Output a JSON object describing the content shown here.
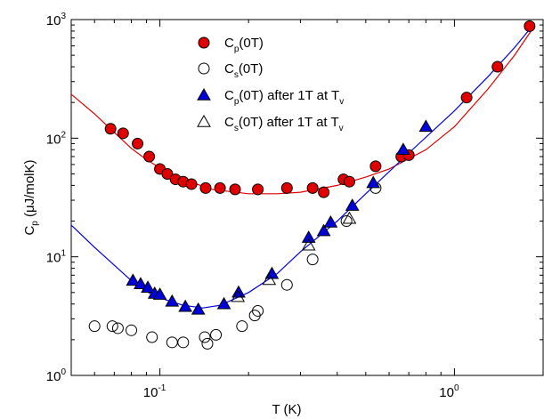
{
  "chart_data": {
    "type": "scatter",
    "title": "",
    "xlabel": "T  (K)",
    "ylabel": {
      "main": "C",
      "sub": "p",
      "units": " (μJ/molK)"
    },
    "xscale": "log",
    "yscale": "log",
    "xlim": [
      0.05,
      2.0
    ],
    "ylim": [
      1,
      1000
    ],
    "x_tick_labels": [
      {
        "value": 0.1,
        "base": "10",
        "exp": "-1"
      },
      {
        "value": 1,
        "base": "10",
        "exp": "0"
      }
    ],
    "y_tick_labels": [
      {
        "value": 1,
        "base": "10",
        "exp": "0"
      },
      {
        "value": 10,
        "base": "10",
        "exp": "1"
      },
      {
        "value": 100,
        "base": "10",
        "exp": "2"
      },
      {
        "value": 1000,
        "base": "10",
        "exp": "3"
      }
    ],
    "legend_position": "top-center",
    "series": [
      {
        "label": {
          "main": "C",
          "sub": "p",
          "rest": "(0T)",
          "extra": "",
          "extra_sub": ""
        },
        "marker": "circle",
        "fill": "#e00000",
        "stroke": "#000000",
        "points": [
          [
            0.068,
            120
          ],
          [
            0.075,
            110
          ],
          [
            0.084,
            90
          ],
          [
            0.092,
            70
          ],
          [
            0.1,
            55
          ],
          [
            0.106,
            50
          ],
          [
            0.113,
            45
          ],
          [
            0.12,
            43
          ],
          [
            0.128,
            41
          ],
          [
            0.143,
            38
          ],
          [
            0.16,
            38
          ],
          [
            0.18,
            37
          ],
          [
            0.215,
            37
          ],
          [
            0.27,
            38
          ],
          [
            0.33,
            38
          ],
          [
            0.36,
            35
          ],
          [
            0.42,
            45
          ],
          [
            0.44,
            43
          ],
          [
            0.54,
            58
          ],
          [
            0.66,
            70
          ],
          [
            0.7,
            72
          ],
          [
            1.1,
            220
          ],
          [
            1.4,
            400
          ],
          [
            1.8,
            880
          ]
        ]
      },
      {
        "label": {
          "main": "C",
          "sub": "s",
          "rest": "(0T)",
          "extra": "",
          "extra_sub": ""
        },
        "marker": "circle",
        "fill": "none",
        "stroke": "#000000",
        "points": [
          [
            0.06,
            2.6
          ],
          [
            0.069,
            2.6
          ],
          [
            0.072,
            2.5
          ],
          [
            0.08,
            2.4
          ],
          [
            0.094,
            2.1
          ],
          [
            0.11,
            1.9
          ],
          [
            0.12,
            1.9
          ],
          [
            0.142,
            2.1
          ],
          [
            0.145,
            1.85
          ],
          [
            0.155,
            2.2
          ],
          [
            0.19,
            2.6
          ],
          [
            0.21,
            3.2
          ],
          [
            0.215,
            3.5
          ],
          [
            0.27,
            5.8
          ],
          [
            0.33,
            9.5
          ],
          [
            0.43,
            20
          ],
          [
            0.54,
            38
          ]
        ]
      },
      {
        "label": {
          "main": "C",
          "sub": "p",
          "rest": "(0T) after 1T at T",
          "extra": "",
          "extra_sub": "v"
        },
        "marker": "triangle",
        "fill": "#0000dd",
        "stroke": "#000000",
        "points": [
          [
            0.081,
            6.3
          ],
          [
            0.086,
            5.9
          ],
          [
            0.091,
            5.5
          ],
          [
            0.096,
            4.9
          ],
          [
            0.1,
            4.8
          ],
          [
            0.11,
            4.2
          ],
          [
            0.122,
            3.8
          ],
          [
            0.135,
            3.6
          ],
          [
            0.165,
            4.0
          ],
          [
            0.185,
            5.0
          ],
          [
            0.24,
            7.2
          ],
          [
            0.32,
            14.5
          ],
          [
            0.36,
            16.5
          ],
          [
            0.38,
            19.5
          ],
          [
            0.45,
            27
          ],
          [
            0.53,
            42
          ],
          [
            0.67,
            80
          ],
          [
            0.8,
            125
          ]
        ]
      },
      {
        "label": {
          "main": "C",
          "sub": "s",
          "rest": "(0T) after 1T at T",
          "extra": "",
          "extra_sub": "v"
        },
        "marker": "triangle",
        "fill": "none",
        "stroke": "#000000",
        "points": [
          [
            0.184,
            4.6
          ],
          [
            0.235,
            6.4
          ],
          [
            0.32,
            12.5
          ],
          [
            0.44,
            21
          ]
        ]
      }
    ],
    "fit_curves": [
      {
        "color": "#e00000",
        "points": [
          [
            0.05,
            235
          ],
          [
            0.06,
            160
          ],
          [
            0.07,
            112
          ],
          [
            0.08,
            82
          ],
          [
            0.09,
            66
          ],
          [
            0.1,
            56
          ],
          [
            0.12,
            45
          ],
          [
            0.15,
            37
          ],
          [
            0.2,
            34
          ],
          [
            0.25,
            34
          ],
          [
            0.3,
            35
          ],
          [
            0.4,
            40
          ],
          [
            0.5,
            47
          ],
          [
            0.6,
            55
          ],
          [
            0.8,
            80
          ],
          [
            1.0,
            125
          ],
          [
            1.3,
            260
          ],
          [
            1.6,
            500
          ],
          [
            1.85,
            850
          ]
        ]
      },
      {
        "color": "#0000dd",
        "points": [
          [
            0.05,
            18.5
          ],
          [
            0.06,
            12
          ],
          [
            0.07,
            8.5
          ],
          [
            0.08,
            6.3
          ],
          [
            0.09,
            5.1
          ],
          [
            0.1,
            4.5
          ],
          [
            0.12,
            3.9
          ],
          [
            0.14,
            3.7
          ],
          [
            0.16,
            3.9
          ],
          [
            0.2,
            5.0
          ],
          [
            0.25,
            7.2
          ],
          [
            0.3,
            11
          ],
          [
            0.4,
            20
          ],
          [
            0.5,
            34
          ],
          [
            0.7,
            75
          ],
          [
            1.0,
            170
          ],
          [
            1.3,
            330
          ],
          [
            1.6,
            580
          ],
          [
            1.85,
            900
          ]
        ]
      }
    ]
  }
}
